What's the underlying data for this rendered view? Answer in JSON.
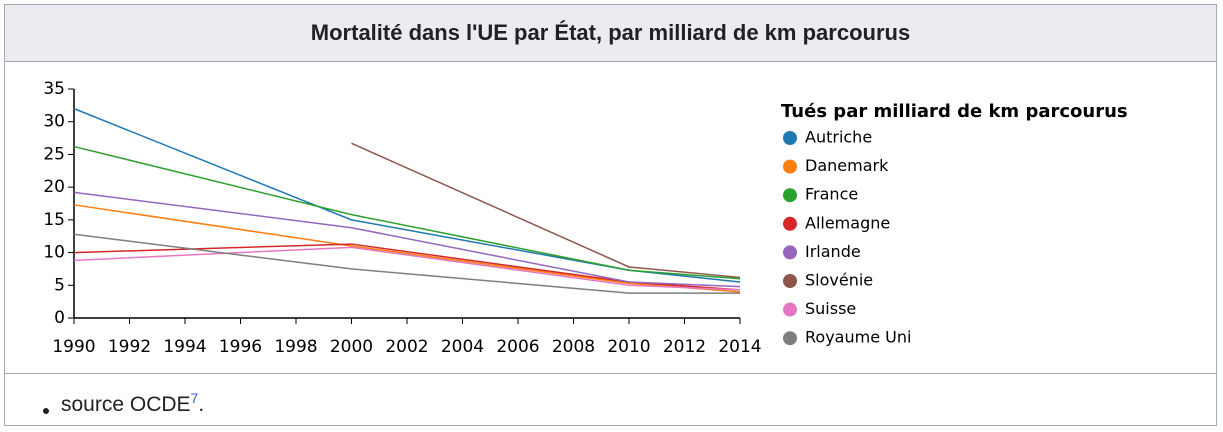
{
  "chart_data": {
    "type": "line",
    "title": "Mortalité dans l'UE par État, par milliard de km parcourus",
    "legend_title": "Tués par milliard de km parcourus",
    "legend": "right",
    "x": [
      1990,
      2000,
      2010,
      2014
    ],
    "xlim": [
      1990,
      2014
    ],
    "xticks": [
      1990,
      1992,
      1994,
      1996,
      1998,
      2000,
      2002,
      2004,
      2006,
      2008,
      2010,
      2012,
      2014
    ],
    "ylim": [
      0,
      35
    ],
    "yticks": [
      0,
      5,
      10,
      15,
      20,
      25,
      30,
      35
    ],
    "grid": false,
    "series": [
      {
        "name": "Autriche",
        "color": "#1f77b4",
        "values": [
          32,
          15,
          7.3,
          5.5
        ]
      },
      {
        "name": "Danemark",
        "color": "#ff7f0e",
        "values": [
          17.3,
          11,
          5.3,
          4
        ]
      },
      {
        "name": "France",
        "color": "#2ca02c",
        "values": [
          26.2,
          15.8,
          7.3,
          6
        ]
      },
      {
        "name": "Allemagne",
        "color": "#d62728",
        "values": [
          10,
          11.3,
          5.5,
          4.3
        ]
      },
      {
        "name": "Irlande",
        "color": "#9467bd",
        "values": [
          19.2,
          13.8,
          5.5,
          4.8
        ]
      },
      {
        "name": "Slovénie",
        "color": "#8c564b",
        "values": [
          null,
          26.7,
          7.8,
          6.2
        ]
      },
      {
        "name": "Suisse",
        "color": "#e377c2",
        "values": [
          8.8,
          10.8,
          5,
          4.3
        ]
      },
      {
        "name": "Royaume Uni",
        "color": "#7f7f7f",
        "values": [
          12.8,
          7.5,
          3.8,
          3.8
        ]
      }
    ]
  },
  "footer": {
    "text": "source OCDE",
    "ref": "7",
    "end": "."
  }
}
